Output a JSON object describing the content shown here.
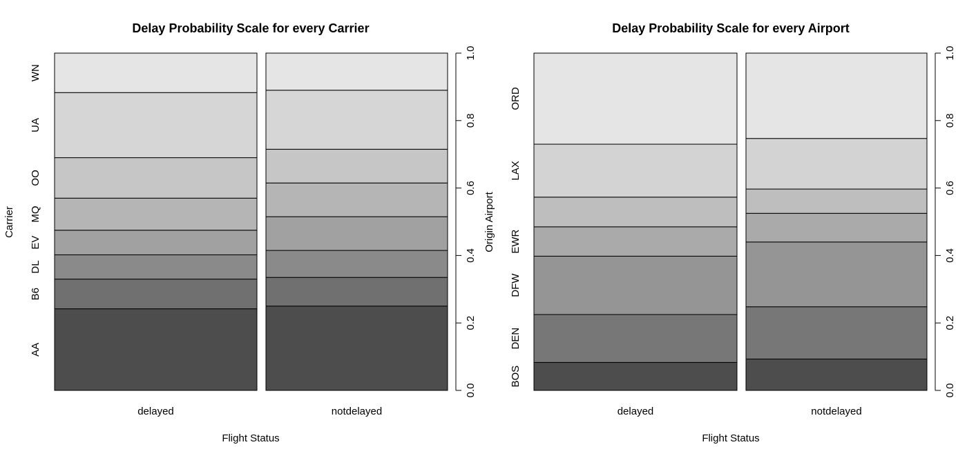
{
  "chart_data": [
    {
      "type": "bar",
      "stacked": true,
      "normalized": true,
      "title": "Delay Probability Scale for every Carrier",
      "xlabel": "Flight Status",
      "ylabel": "Carrier",
      "ylim": [
        0,
        1
      ],
      "yticks": [
        "0.0",
        "0.2",
        "0.4",
        "0.6",
        "0.8",
        "1.0"
      ],
      "categories": [
        "delayed",
        "notdelayed"
      ],
      "series": [
        {
          "name": "AA",
          "values": [
            0.242,
            0.25
          ],
          "color": "#4d4d4d"
        },
        {
          "name": "B6",
          "values": [
            0.088,
            0.085
          ],
          "color": "#707070"
        },
        {
          "name": "DL",
          "values": [
            0.072,
            0.08
          ],
          "color": "#8a8a8a"
        },
        {
          "name": "EV",
          "values": [
            0.073,
            0.1
          ],
          "color": "#a1a1a1"
        },
        {
          "name": "MQ",
          "values": [
            0.095,
            0.1
          ],
          "color": "#b5b5b5"
        },
        {
          "name": "OO",
          "values": [
            0.12,
            0.1
          ],
          "color": "#c6c6c6"
        },
        {
          "name": "UA",
          "values": [
            0.193,
            0.175
          ],
          "color": "#d6d6d6"
        },
        {
          "name": "WN",
          "values": [
            0.117,
            0.11
          ],
          "color": "#e5e5e5"
        }
      ]
    },
    {
      "type": "bar",
      "stacked": true,
      "normalized": true,
      "title": "Delay Probability Scale for every Airport",
      "xlabel": "Flight Status",
      "ylabel": "Origin Airport",
      "ylim": [
        0,
        1
      ],
      "yticks": [
        "0.0",
        "0.2",
        "0.4",
        "0.6",
        "0.8",
        "1.0"
      ],
      "categories": [
        "delayed",
        "notdelayed"
      ],
      "series": [
        {
          "name": "BOS",
          "values": [
            0.083,
            0.093
          ],
          "color": "#4d4d4d"
        },
        {
          "name": "DEN",
          "values": [
            0.142,
            0.155
          ],
          "color": "#777777"
        },
        {
          "name": "DFW",
          "values": [
            0.173,
            0.192
          ],
          "color": "#959595"
        },
        {
          "name": "EWR",
          "values": [
            0.087,
            0.085
          ],
          "color": "#aaaaaa"
        },
        {
          "name": "",
          "values": [
            0.088,
            0.072
          ],
          "color": "#bebebe"
        },
        {
          "name": "LAX",
          "values": [
            0.157,
            0.15
          ],
          "color": "#d3d3d3"
        },
        {
          "name": "ORD",
          "values": [
            0.27,
            0.253
          ],
          "color": "#e5e5e5"
        }
      ]
    }
  ]
}
